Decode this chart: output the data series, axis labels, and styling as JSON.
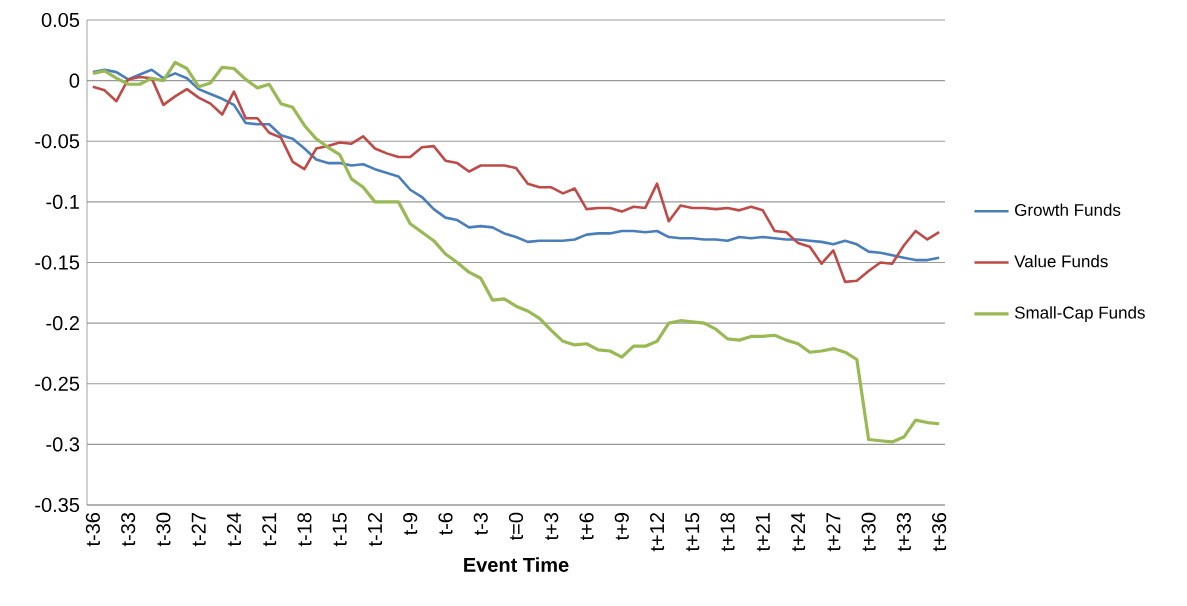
{
  "chart_data": {
    "type": "line",
    "xlabel": "Event Time",
    "categories": [
      "t-36",
      null,
      null,
      "t-33",
      null,
      null,
      "t-30",
      null,
      null,
      "t-27",
      null,
      null,
      "t-24",
      null,
      null,
      "t-21",
      null,
      null,
      "t-18",
      null,
      null,
      "t-15",
      null,
      null,
      "t-12",
      null,
      null,
      "t-9",
      null,
      null,
      "t-6",
      null,
      null,
      "t-3",
      null,
      null,
      "t=0",
      null,
      null,
      "t+3",
      null,
      null,
      "t+6",
      null,
      null,
      "t+9",
      null,
      null,
      "t+12",
      null,
      null,
      "t+15",
      null,
      null,
      "t+18",
      null,
      null,
      "t+21",
      null,
      null,
      "t+24",
      null,
      null,
      "t+27",
      null,
      null,
      "t+30",
      null,
      null,
      "t+33",
      null,
      null,
      "t+36"
    ],
    "series": [
      {
        "name": "Growth Funds",
        "color": "#4a7ebb",
        "values": [
          0.007,
          0.009,
          0.007,
          0.001,
          0.005,
          0.009,
          0.002,
          0.006,
          0.002,
          -0.007,
          -0.011,
          -0.015,
          -0.02,
          -0.035,
          -0.036,
          -0.036,
          -0.045,
          -0.048,
          -0.056,
          -0.065,
          -0.068,
          -0.068,
          -0.07,
          -0.069,
          -0.073,
          -0.076,
          -0.079,
          -0.09,
          -0.096,
          -0.106,
          -0.113,
          -0.115,
          -0.121,
          -0.12,
          -0.121,
          -0.126,
          -0.129,
          -0.133,
          -0.132,
          -0.132,
          -0.132,
          -0.131,
          -0.127,
          -0.126,
          -0.126,
          -0.124,
          -0.124,
          -0.125,
          -0.124,
          -0.129,
          -0.13,
          -0.13,
          -0.131,
          -0.131,
          -0.132,
          -0.129,
          -0.13,
          -0.129,
          -0.13,
          -0.131,
          -0.131,
          -0.132,
          -0.133,
          -0.135,
          -0.132,
          -0.135,
          -0.141,
          -0.142,
          -0.144,
          -0.146,
          -0.148,
          -0.148,
          -0.146
        ]
      },
      {
        "name": "Value Funds",
        "color": "#be4b48",
        "values": [
          -0.005,
          -0.008,
          -0.017,
          0.001,
          0.003,
          0.002,
          -0.02,
          -0.013,
          -0.007,
          -0.014,
          -0.019,
          -0.028,
          -0.009,
          -0.031,
          -0.031,
          -0.043,
          -0.047,
          -0.067,
          -0.073,
          -0.056,
          -0.054,
          -0.051,
          -0.052,
          -0.046,
          -0.056,
          -0.06,
          -0.063,
          -0.063,
          -0.055,
          -0.054,
          -0.066,
          -0.068,
          -0.075,
          -0.07,
          -0.07,
          -0.07,
          -0.072,
          -0.085,
          -0.088,
          -0.088,
          -0.093,
          -0.089,
          -0.106,
          -0.105,
          -0.105,
          -0.108,
          -0.104,
          -0.105,
          -0.085,
          -0.116,
          -0.103,
          -0.105,
          -0.105,
          -0.106,
          -0.105,
          -0.107,
          -0.104,
          -0.107,
          -0.124,
          -0.125,
          -0.134,
          -0.137,
          -0.151,
          -0.14,
          -0.166,
          -0.165,
          -0.157,
          -0.15,
          -0.151,
          -0.136,
          -0.124,
          -0.131,
          -0.125
        ]
      },
      {
        "name": "Small-Cap Funds",
        "color": "#98b954",
        "values": [
          0.006,
          0.008,
          0.002,
          -0.003,
          -0.003,
          0.002,
          0.0,
          0.015,
          0.01,
          -0.005,
          -0.002,
          0.011,
          0.01,
          0.001,
          -0.006,
          -0.003,
          -0.019,
          -0.022,
          -0.037,
          -0.048,
          -0.055,
          -0.061,
          -0.081,
          -0.088,
          -0.1,
          -0.1,
          -0.1,
          -0.118,
          -0.125,
          -0.132,
          -0.143,
          -0.15,
          -0.158,
          -0.163,
          -0.181,
          -0.18,
          -0.186,
          -0.19,
          -0.196,
          -0.206,
          -0.215,
          -0.218,
          -0.217,
          -0.222,
          -0.223,
          -0.228,
          -0.219,
          -0.219,
          -0.215,
          -0.2,
          -0.198,
          -0.199,
          -0.2,
          -0.205,
          -0.213,
          -0.214,
          -0.211,
          -0.211,
          -0.21,
          -0.214,
          -0.217,
          -0.224,
          -0.223,
          -0.221,
          -0.224,
          -0.23,
          -0.296,
          -0.297,
          -0.298,
          -0.294,
          -0.28,
          -0.282,
          -0.283
        ]
      }
    ],
    "ylim": [
      -0.35,
      0.05
    ],
    "yticks": [
      0.05,
      0,
      -0.05,
      -0.1,
      -0.15,
      -0.2,
      -0.25,
      -0.3,
      -0.35
    ],
    "grid": "y",
    "legend": "right"
  }
}
